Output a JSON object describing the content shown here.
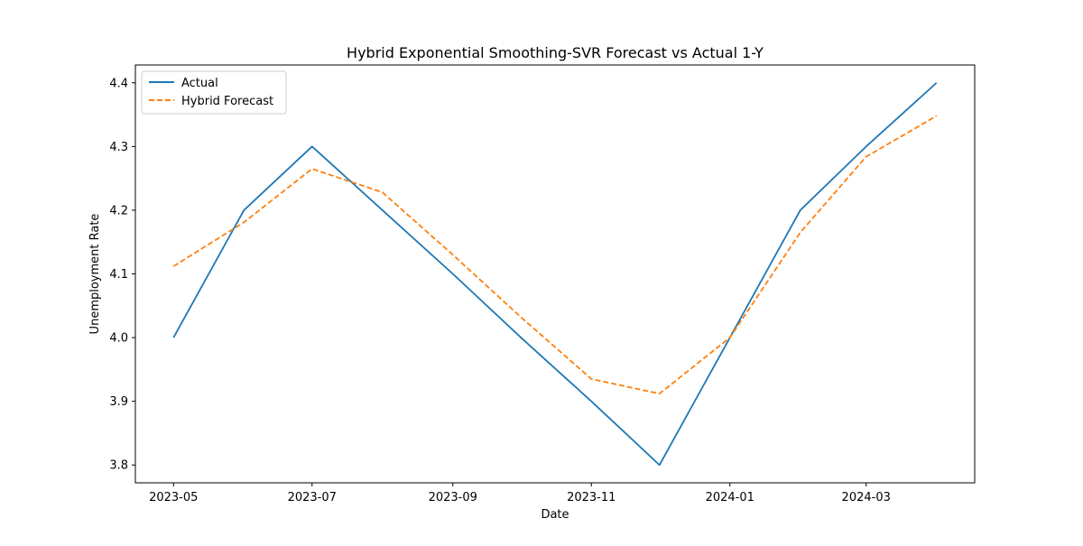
{
  "chart_data": {
    "type": "line",
    "title": "Hybrid Exponential Smoothing-SVR Forecast vs Actual 1-Y",
    "xlabel": "Date",
    "ylabel": "Unemployment Rate",
    "x": [
      "2023-05-01",
      "2023-06-01",
      "2023-07-01",
      "2023-08-01",
      "2023-09-01",
      "2023-10-01",
      "2023-11-01",
      "2023-12-01",
      "2024-01-01",
      "2024-02-01",
      "2024-03-01",
      "2024-04-01"
    ],
    "x_ticks": [
      "2023-05",
      "2023-07",
      "2023-09",
      "2023-11",
      "2024-01",
      "2024-03"
    ],
    "y_ticks": [
      "3.8",
      "3.9",
      "4.0",
      "4.1",
      "4.2",
      "4.3",
      "4.4"
    ],
    "ylim": [
      3.772,
      4.428
    ],
    "grid": false,
    "legend_position": "top-left",
    "series": [
      {
        "name": "Actual",
        "color": "#1f77b4",
        "dash": "solid",
        "values": [
          4.0,
          4.2,
          4.3,
          4.2,
          4.1,
          4.0,
          3.9,
          3.8,
          4.0,
          4.2,
          4.3,
          4.4
        ]
      },
      {
        "name": "Hybrid Forecast",
        "color": "#ff7f0e",
        "dash": "dashed",
        "values": [
          4.112,
          4.181,
          4.265,
          4.228,
          4.13,
          4.032,
          3.935,
          3.912,
          4.0,
          4.165,
          4.284,
          4.348
        ]
      }
    ]
  }
}
